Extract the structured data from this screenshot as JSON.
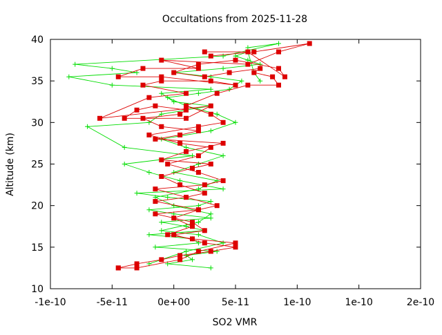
{
  "chart_data": {
    "type": "line",
    "title": "Occultations from 2025-11-28",
    "xlabel": "SO2 VMR",
    "ylabel": "Altitude (km)",
    "xlim": [
      -1e-10,
      2e-10
    ],
    "ylim": [
      10,
      40
    ],
    "x_ticks": [
      -1e-10,
      -5e-11,
      0,
      5e-11,
      1e-10,
      1.5e-10,
      2e-10
    ],
    "x_tick_labels": [
      "-1e-10",
      "-5e-11",
      "0e+00",
      "5e-11",
      "1e-10",
      "1e-10",
      "2e-10"
    ],
    "y_ticks": [
      10,
      15,
      20,
      25,
      30,
      35,
      40
    ],
    "y_tick_labels": [
      "10",
      "15",
      "20",
      "25",
      "30",
      "35",
      "40"
    ],
    "grid": false,
    "legend": "none",
    "colors": {
      "profile_a": "#00dd00",
      "profile_b": "#dd0000"
    },
    "series": [
      {
        "color": "#00dd00",
        "marker": "plus",
        "x": [
          3e-11,
          -5e-12,
          1.5e-11,
          1e-11,
          3.5e-11,
          -1.5e-11,
          2e-11,
          1.5e-11,
          -2e-11,
          2.5e-11,
          1e-11,
          -1e-11,
          3e-11,
          0.0,
          -2e-11,
          2e-11,
          3e-11,
          -5e-12,
          -3e-11,
          4e-11,
          5e-12,
          -2e-11,
          -4e-11,
          1.5e-11,
          -4e-11,
          -7e-11,
          -2e-11,
          -1e-11,
          3e-11,
          0.0,
          -1e-11,
          3e-11,
          -5e-11,
          -8.5e-11,
          -3e-11,
          -5e-11,
          -8e-11,
          4e-11,
          8.5e-11,
          6e-11
        ],
        "y": [
          12.5,
          13.0,
          13.5,
          14.0,
          14.5,
          15.0,
          15.5,
          16.0,
          16.5,
          17.0,
          17.5,
          18.0,
          18.5,
          19.0,
          19.5,
          20.0,
          20.5,
          21.0,
          21.5,
          22.0,
          23.0,
          24.0,
          25.0,
          26.0,
          27.0,
          29.5,
          30.0,
          31.0,
          32.0,
          32.5,
          33.5,
          34.0,
          34.5,
          35.5,
          36.0,
          36.5,
          37.0,
          38.0,
          39.5,
          39.0
        ]
      },
      {
        "color": "#00dd00",
        "marker": "plus",
        "x": [
          -2e-11,
          1e-11,
          4e-11,
          2e-11,
          -1e-11,
          2e-11,
          3e-11,
          0.0,
          -1.5e-11,
          2e-11,
          3.5e-11,
          0.0,
          2e-11,
          4e-11,
          1e-11,
          -1e-11,
          3e-11,
          5e-11,
          3.5e-11,
          1e-11,
          -5e-12,
          2e-11,
          4.5e-11,
          5.5e-11,
          3e-11,
          0.0,
          4e-11,
          7e-11,
          6e-11,
          5e-11,
          6e-11,
          6.5e-11,
          7e-11
        ],
        "y": [
          13.0,
          14.5,
          15.5,
          16.5,
          17.0,
          18.0,
          19.0,
          20.0,
          21.0,
          22.0,
          23.0,
          24.0,
          25.0,
          26.0,
          27.0,
          28.0,
          29.0,
          30.0,
          31.0,
          32.0,
          33.0,
          33.5,
          34.0,
          35.0,
          35.5,
          36.0,
          36.5,
          37.0,
          37.5,
          38.0,
          38.5,
          36.0,
          35.0
        ]
      },
      {
        "color": "#dd0000",
        "marker": "square",
        "x": [
          -4.5e-11,
          -3e-11,
          5e-12,
          2e-11,
          5e-11,
          1.5e-11,
          -5e-12,
          1.5e-11,
          0.0,
          2e-11,
          -1.5e-11,
          1e-11,
          2.5e-11,
          5e-12,
          -1e-11,
          1.5e-11,
          3e-11,
          -1e-11,
          1e-11,
          4e-11,
          -1.5e-11,
          5e-12,
          2e-11,
          -1e-11,
          -2.5e-11,
          5e-12,
          1e-11,
          -1.5e-11,
          -3e-11,
          -4e-11,
          1e-11,
          3e-11,
          -6e-11,
          -2e-11,
          1e-11,
          -2.5e-11,
          -1e-11,
          3e-11,
          5e-11,
          -1e-11,
          -4.5e-11,
          -2.5e-11,
          2e-11,
          -1e-11,
          6e-11,
          8.5e-11,
          1.1e-10,
          6.5e-11,
          3e-11
        ],
        "y": [
          12.5,
          12.5,
          13.5,
          14.5,
          15.5,
          16.0,
          16.5,
          17.5,
          18.5,
          19.5,
          20.5,
          21.0,
          21.5,
          22.5,
          23.5,
          24.5,
          25.0,
          25.5,
          26.5,
          27.5,
          28.0,
          28.5,
          29.0,
          29.5,
          30.5,
          31.0,
          31.5,
          32.0,
          31.5,
          30.5,
          30.5,
          32.0,
          30.5,
          33.0,
          33.5,
          34.5,
          35.0,
          35.0,
          34.5,
          35.5,
          35.5,
          36.5,
          36.5,
          37.5,
          37.0,
          38.5,
          39.5,
          38.5,
          38.0
        ]
      },
      {
        "color": "#dd0000",
        "marker": "square",
        "x": [
          -4.5e-11,
          -3e-11,
          -1e-11,
          5e-12,
          3e-11,
          5e-11,
          2.5e-11,
          0.0,
          2.5e-11,
          1.5e-11,
          -1.5e-11,
          2e-11,
          3.5e-11,
          1e-11,
          -1.5e-11,
          2.5e-11,
          4e-11,
          2e-11,
          -5e-12,
          2e-11,
          3e-11,
          5e-12,
          -2e-11,
          2e-11,
          4e-11,
          3e-11,
          1e-11,
          3.5e-11,
          6e-11,
          8.5e-11,
          8e-11,
          6.5e-11,
          7e-11,
          4.5e-11,
          2.5e-11,
          0.0,
          2e-11,
          5e-11,
          8.5e-11,
          9e-11,
          6e-11,
          2.5e-11
        ],
        "y": [
          12.5,
          13.0,
          13.5,
          14.0,
          14.5,
          15.0,
          15.5,
          16.5,
          17.0,
          18.0,
          19.0,
          19.5,
          20.0,
          21.0,
          22.0,
          22.5,
          23.0,
          24.0,
          25.0,
          26.0,
          27.0,
          27.5,
          28.5,
          29.5,
          30.0,
          31.0,
          32.0,
          33.5,
          34.5,
          34.5,
          35.5,
          36.0,
          36.5,
          36.0,
          35.5,
          36.0,
          37.0,
          37.5,
          36.5,
          35.5,
          38.5,
          38.5
        ]
      }
    ]
  }
}
